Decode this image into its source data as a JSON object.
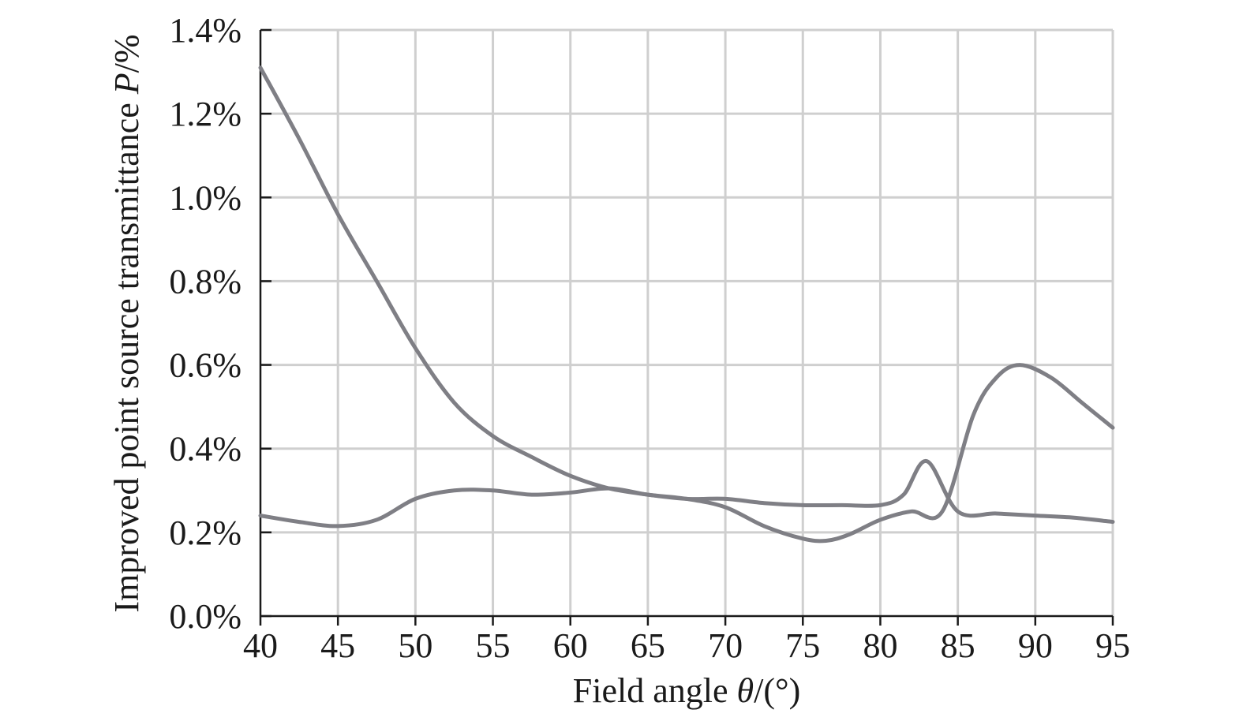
{
  "chart_data": {
    "type": "line",
    "title": "",
    "xlabel": {
      "prefix": "Field angle ",
      "symbol": "θ",
      "suffix": "/(°)"
    },
    "ylabel": {
      "prefix": "Improved point source transmittance ",
      "symbol": "P",
      "suffix": "/%"
    },
    "xlim": [
      40,
      95
    ],
    "ylim": [
      0.0,
      1.4
    ],
    "x_ticks": [
      "40",
      "45",
      "50",
      "55",
      "60",
      "65",
      "70",
      "75",
      "80",
      "85",
      "90",
      "95"
    ],
    "x_tick_values": [
      40,
      45,
      50,
      55,
      60,
      65,
      70,
      75,
      80,
      85,
      90,
      95
    ],
    "y_ticks": [
      "0.0%",
      "0.2%",
      "0.4%",
      "0.6%",
      "0.8%",
      "1.0%",
      "1.2%",
      "1.4%"
    ],
    "y_tick_values": [
      0.0,
      0.2,
      0.4,
      0.6,
      0.8,
      1.0,
      1.2,
      1.4
    ],
    "grid": true,
    "legend": "none",
    "line_color": "#7f7f85",
    "series": [
      {
        "x": [
          40,
          42.5,
          45,
          47.5,
          50,
          52.5,
          55,
          57.5,
          60,
          62.5,
          65,
          67.5,
          70,
          72.5,
          75,
          76.5,
          78,
          80,
          82,
          84,
          86,
          87.5,
          89,
          91,
          93,
          95
        ],
        "values": [
          1.31,
          1.14,
          0.96,
          0.8,
          0.64,
          0.51,
          0.43,
          0.38,
          0.335,
          0.305,
          0.29,
          0.28,
          0.26,
          0.215,
          0.185,
          0.18,
          0.195,
          0.23,
          0.25,
          0.25,
          0.48,
          0.57,
          0.6,
          0.57,
          0.51,
          0.45
        ]
      },
      {
        "x": [
          40,
          42.5,
          45,
          47.5,
          50,
          52.5,
          55,
          57.5,
          60,
          62.5,
          65,
          67.5,
          70,
          72.5,
          75,
          77.5,
          80,
          81.5,
          83,
          85,
          87.5,
          90,
          92.5,
          95
        ],
        "values": [
          0.24,
          0.225,
          0.215,
          0.23,
          0.28,
          0.3,
          0.3,
          0.29,
          0.295,
          0.305,
          0.29,
          0.28,
          0.28,
          0.27,
          0.265,
          0.265,
          0.265,
          0.29,
          0.37,
          0.25,
          0.245,
          0.24,
          0.235,
          0.225
        ]
      }
    ]
  }
}
